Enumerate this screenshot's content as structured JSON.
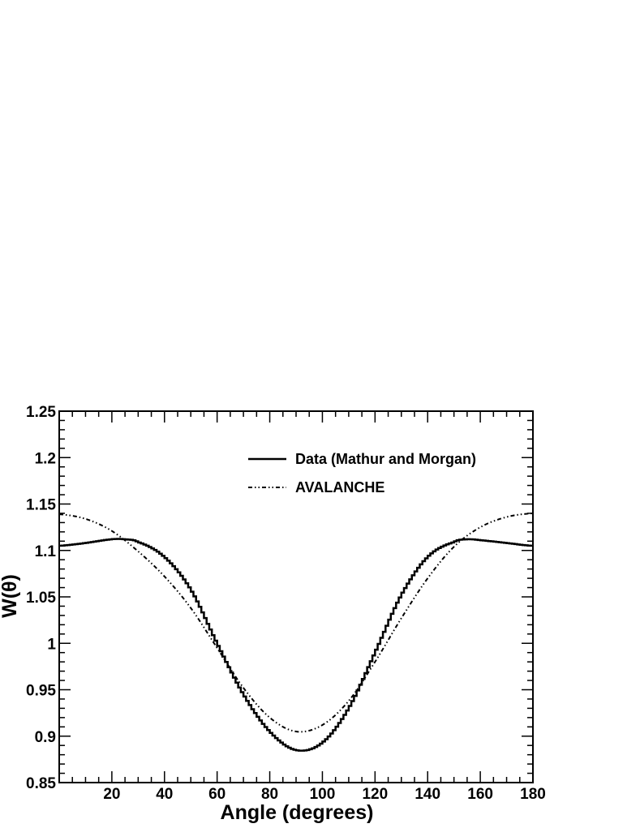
{
  "chart_data": {
    "type": "line",
    "title": "",
    "xlabel": "Angle (degrees)",
    "ylabel": "W(θ)",
    "xlim": [
      0,
      180
    ],
    "ylim": [
      0.85,
      1.25
    ],
    "x_ticks": [
      20,
      40,
      60,
      80,
      100,
      120,
      140,
      160,
      180
    ],
    "x_tick_labels": [
      "20",
      "40",
      "60",
      "80",
      "100",
      "120",
      "140",
      "160",
      "180"
    ],
    "y_ticks": [
      0.85,
      0.9,
      0.95,
      1.0,
      1.05,
      1.1,
      1.15,
      1.2,
      1.25
    ],
    "y_tick_labels": [
      "0.85",
      "0.9",
      "0.95",
      "1",
      "1.05",
      "1.1",
      "1.15",
      "1.2",
      "1.25"
    ],
    "grid": false,
    "legend_position": "top-right",
    "series": [
      {
        "name": "Data (Mathur and Morgan)",
        "style": "solid-step",
        "color": "#000000",
        "x": [
          0,
          10,
          20,
          25,
          30,
          40,
          50,
          60,
          70,
          80,
          90,
          100,
          110,
          120,
          130,
          140,
          150,
          155,
          160,
          170,
          180
        ],
        "y": [
          1.105,
          1.108,
          1.112,
          1.112,
          1.109,
          1.093,
          1.058,
          1.0,
          0.945,
          0.905,
          0.885,
          0.893,
          0.93,
          0.99,
          1.052,
          1.093,
          1.109,
          1.112,
          1.111,
          1.108,
          1.105
        ]
      },
      {
        "name": "AVALANCHE",
        "style": "dash-dot",
        "color": "#000000",
        "x": [
          0,
          10,
          20,
          30,
          40,
          50,
          60,
          70,
          80,
          90,
          100,
          110,
          120,
          130,
          140,
          150,
          160,
          170,
          180
        ],
        "y": [
          1.139,
          1.134,
          1.121,
          1.099,
          1.072,
          1.038,
          0.995,
          0.952,
          0.92,
          0.905,
          0.912,
          0.938,
          0.98,
          1.027,
          1.07,
          1.104,
          1.125,
          1.136,
          1.14
        ]
      }
    ]
  }
}
